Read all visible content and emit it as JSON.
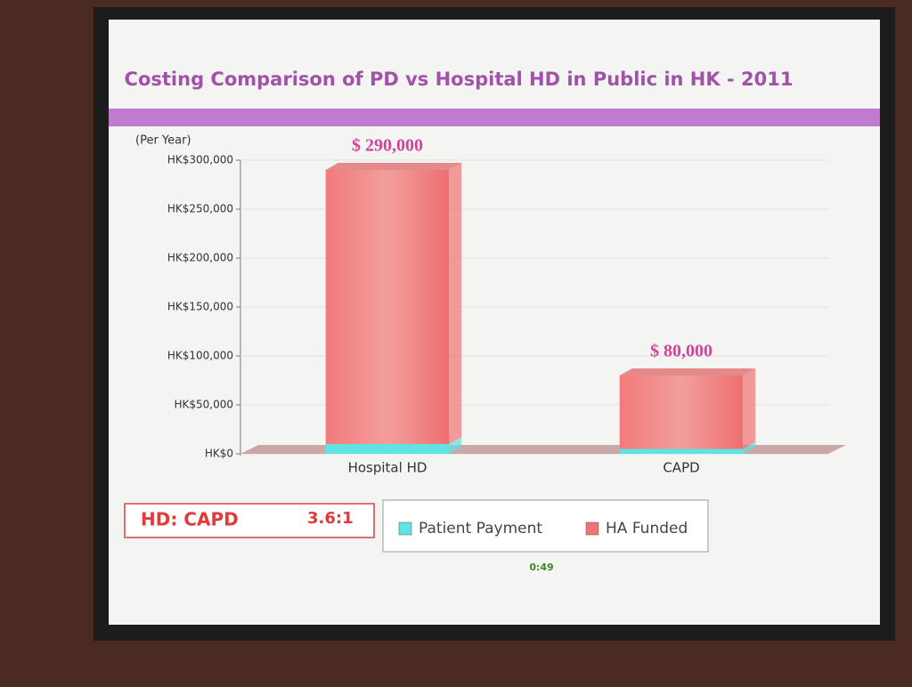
{
  "chart_data": {
    "type": "stacked_bar",
    "title": "Costing Comparison of PD vs Hospital HD in Public in HK - 2011",
    "ylabel": "(Per Year)",
    "categories": [
      "Hospital HD",
      "CAPD"
    ],
    "series": [
      {
        "name": "Patient Payment",
        "color": "#5fe3e3",
        "values": [
          10000,
          5000
        ]
      },
      {
        "name": "HA Funded",
        "color": "#f07474",
        "values": [
          280000,
          75000
        ]
      }
    ],
    "totals": {
      "values": [
        290000,
        80000
      ],
      "value_labels": [
        "$ 290,000",
        "$ 80,000"
      ]
    },
    "ylim": [
      0,
      300000
    ],
    "yticks": [
      {
        "value": 0,
        "label": "HK$0"
      },
      {
        "value": 50000,
        "label": "HK$50,000"
      },
      {
        "value": 100000,
        "label": "HK$100,000"
      },
      {
        "value": 150000,
        "label": "HK$150,000"
      },
      {
        "value": 200000,
        "label": "HK$200,000"
      },
      {
        "value": 250000,
        "label": "HK$250,000"
      },
      {
        "value": 300000,
        "label": "HK$300,000"
      }
    ],
    "grid": true,
    "legend": "bottom",
    "ratio_box": {
      "label": "HD: CAPD",
      "value": "3.6:1"
    },
    "timer": "0:49"
  }
}
